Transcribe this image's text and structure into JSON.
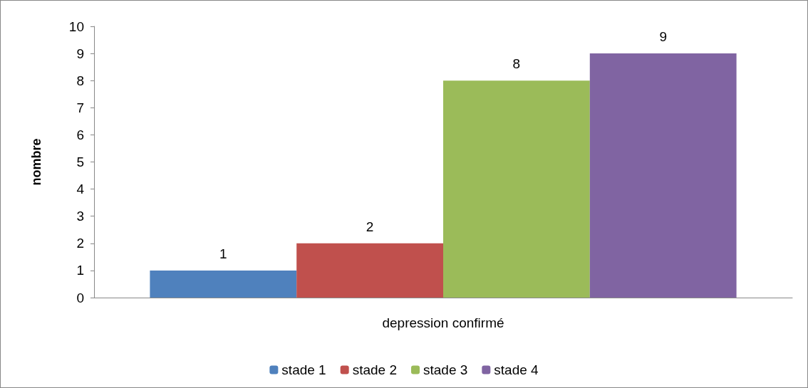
{
  "chart_data": {
    "type": "bar",
    "ylabel": "nombre",
    "categories": [
      "depression confirmé"
    ],
    "series": [
      {
        "name": "stade 1",
        "color": "#4f81bd",
        "values": [
          1
        ]
      },
      {
        "name": "stade 2",
        "color": "#c0504d",
        "values": [
          2
        ]
      },
      {
        "name": "stade 3",
        "color": "#9bbb59",
        "values": [
          8
        ]
      },
      {
        "name": "stade 4",
        "color": "#8064a2",
        "values": [
          9
        ]
      }
    ],
    "ylim": [
      0,
      10
    ],
    "yticks": [
      0,
      1,
      2,
      3,
      4,
      5,
      6,
      7,
      8,
      9,
      10
    ],
    "grid": false,
    "legend": "bottom",
    "data_labels": true
  }
}
